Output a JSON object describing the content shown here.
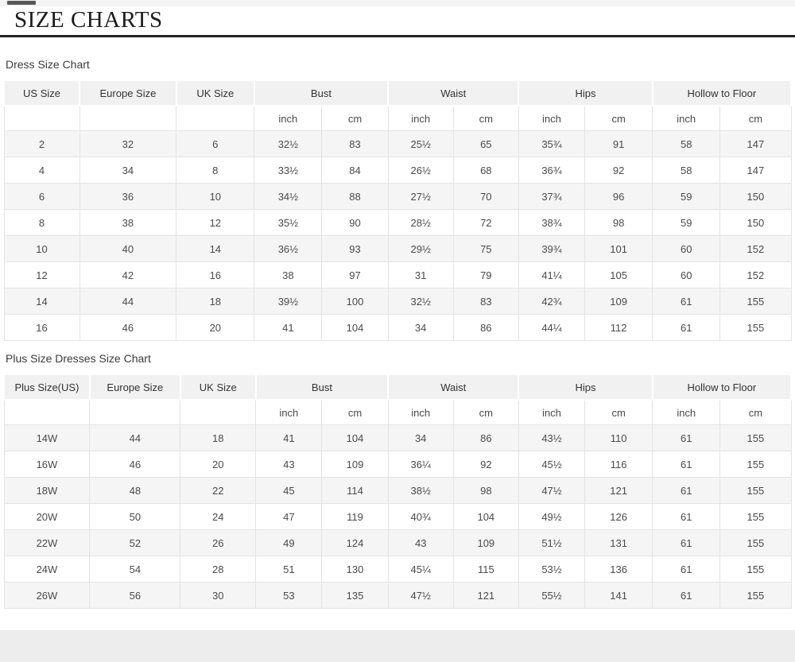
{
  "page": {
    "title": "SIZE CHARTS"
  },
  "dress_table": {
    "label": "Dress Size Chart",
    "column_groups": [
      {
        "label": "US Size",
        "sub": []
      },
      {
        "label": "Europe Size",
        "sub": []
      },
      {
        "label": "UK Size",
        "sub": []
      },
      {
        "label": "Bust",
        "sub": [
          "inch",
          "cm"
        ]
      },
      {
        "label": "Waist",
        "sub": [
          "inch",
          "cm"
        ]
      },
      {
        "label": "Hips",
        "sub": [
          "inch",
          "cm"
        ]
      },
      {
        "label": "Hollow to Floor",
        "sub": [
          "inch",
          "cm"
        ]
      }
    ],
    "rows": [
      [
        "2",
        "32",
        "6",
        "32½",
        "83",
        "25½",
        "65",
        "35¾",
        "91",
        "58",
        "147"
      ],
      [
        "4",
        "34",
        "8",
        "33½",
        "84",
        "26½",
        "68",
        "36¾",
        "92",
        "58",
        "147"
      ],
      [
        "6",
        "36",
        "10",
        "34½",
        "88",
        "27½",
        "70",
        "37¾",
        "96",
        "59",
        "150"
      ],
      [
        "8",
        "38",
        "12",
        "35½",
        "90",
        "28½",
        "72",
        "38¾",
        "98",
        "59",
        "150"
      ],
      [
        "10",
        "40",
        "14",
        "36½",
        "93",
        "29½",
        "75",
        "39¾",
        "101",
        "60",
        "152"
      ],
      [
        "12",
        "42",
        "16",
        "38",
        "97",
        "31",
        "79",
        "41¼",
        "105",
        "60",
        "152"
      ],
      [
        "14",
        "44",
        "18",
        "39½",
        "100",
        "32½",
        "83",
        "42¾",
        "109",
        "61",
        "155"
      ],
      [
        "16",
        "46",
        "20",
        "41",
        "104",
        "34",
        "86",
        "44¼",
        "112",
        "61",
        "155"
      ]
    ]
  },
  "plus_table": {
    "label": "Plus Size Dresses Size Chart",
    "column_groups": [
      {
        "label": "Plus Size(US)",
        "sub": []
      },
      {
        "label": "Europe Size",
        "sub": []
      },
      {
        "label": "UK Size",
        "sub": []
      },
      {
        "label": "Bust",
        "sub": [
          "inch",
          "cm"
        ]
      },
      {
        "label": "Waist",
        "sub": [
          "inch",
          "cm"
        ]
      },
      {
        "label": "Hips",
        "sub": [
          "inch",
          "cm"
        ]
      },
      {
        "label": "Hollow to Floor",
        "sub": [
          "inch",
          "cm"
        ]
      }
    ],
    "rows": [
      [
        "14W",
        "44",
        "18",
        "41",
        "104",
        "34",
        "86",
        "43½",
        "110",
        "61",
        "155"
      ],
      [
        "16W",
        "46",
        "20",
        "43",
        "109",
        "36¼",
        "92",
        "45½",
        "116",
        "61",
        "155"
      ],
      [
        "18W",
        "48",
        "22",
        "45",
        "114",
        "38½",
        "98",
        "47½",
        "121",
        "61",
        "155"
      ],
      [
        "20W",
        "50",
        "24",
        "47",
        "119",
        "40¾",
        "104",
        "49½",
        "126",
        "61",
        "155"
      ],
      [
        "22W",
        "52",
        "26",
        "49",
        "124",
        "43",
        "109",
        "51½",
        "131",
        "61",
        "155"
      ],
      [
        "24W",
        "54",
        "28",
        "51",
        "130",
        "45¼",
        "115",
        "53½",
        "136",
        "61",
        "155"
      ],
      [
        "26W",
        "56",
        "30",
        "53",
        "135",
        "47½",
        "121",
        "55½",
        "141",
        "61",
        "155"
      ]
    ]
  },
  "colors": {
    "header_bg": "#f1f1f1",
    "alt_row_bg": "#f5f5f5",
    "border": "#e3e3e3",
    "title_rule": "#232323",
    "footer_band": "#ededed"
  }
}
